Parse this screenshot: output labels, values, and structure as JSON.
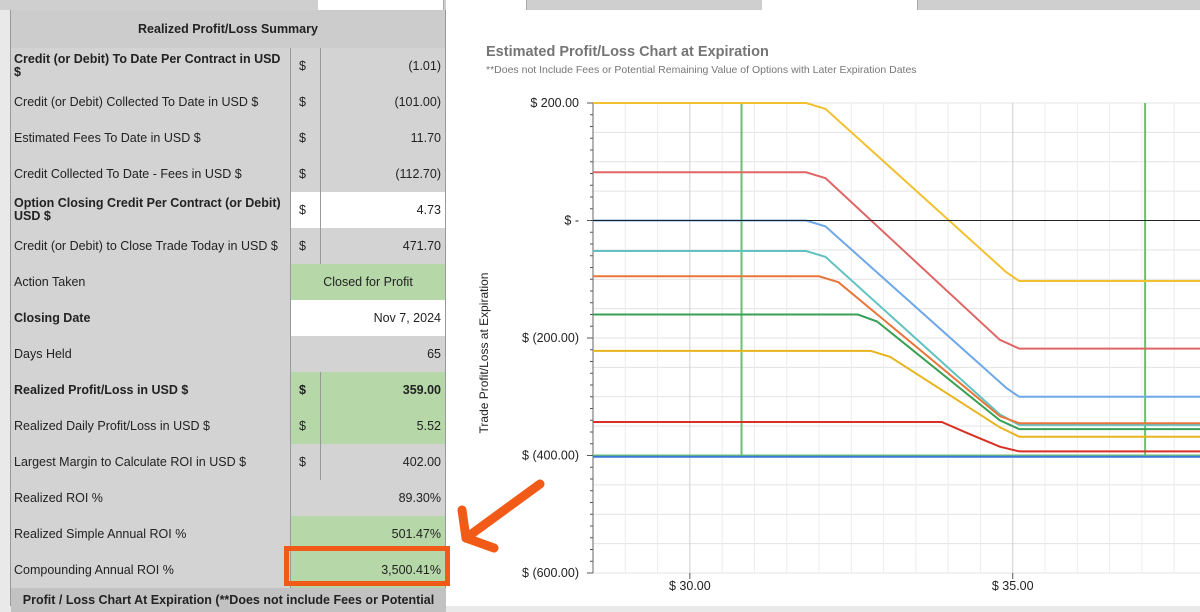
{
  "summary": {
    "title": "Realized Profit/Loss Summary",
    "rows": [
      {
        "label": "Credit (or Debit) To Date Per Contract in USD $",
        "currency": "$",
        "value": "(1.01)"
      },
      {
        "label": "Credit (or Debit) Collected To Date in USD $",
        "currency": "$",
        "value": "(101.00)"
      },
      {
        "label": "Estimated Fees To Date in USD $",
        "currency": "$",
        "value": "11.70"
      },
      {
        "label": "Credit Collected To Date - Fees in USD $",
        "currency": "$",
        "value": "(112.70)"
      },
      {
        "label": "Option Closing Credit Per Contract (or Debit) USD $",
        "currency": "$",
        "value": "4.73"
      },
      {
        "label": "Credit (or Debit) to Close Trade Today in USD $",
        "currency": "$",
        "value": "471.70"
      },
      {
        "label": "Action Taken",
        "value": "Closed for Profit"
      },
      {
        "label": "Closing Date",
        "value": "Nov 7, 2024"
      },
      {
        "label": "Days Held",
        "value": "65"
      },
      {
        "label": "Realized Profit/Loss in USD $",
        "currency": "$",
        "value": "359.00"
      },
      {
        "label": "Realized Daily Profit/Loss in USD $",
        "currency": "$",
        "value": "5.52"
      },
      {
        "label": "Largest Margin to Calculate ROI in USD $",
        "currency": "$",
        "value": "402.00"
      },
      {
        "label": "Realized ROI %",
        "value": "89.30%"
      },
      {
        "label": "Realized Simple Annual ROI %",
        "value": "501.47%"
      },
      {
        "label": "Compounding Annual ROI %",
        "value": "3,500.41%"
      }
    ],
    "footer": "Profit / Loss Chart At Expiration (**Does not include Fees or Potential"
  },
  "chart_data": {
    "type": "line",
    "title": "Estimated Profit/Loss Chart at Expiration",
    "subtitle": "**Does not Include Fees or Potential Remaining Value of Options with Later Expiration Dates",
    "ylabel": "Trade Profit/Loss at Expiration",
    "xlabel": "",
    "x_tick_labels": [
      "$ 30.00",
      "$ 35.00"
    ],
    "y_tick_labels": [
      "$ 200.00",
      "$ -",
      "$ (200.00)",
      "$ (400.00)",
      "$ (600.00)"
    ],
    "xlim": [
      28.5,
      37.9
    ],
    "ylim": [
      -600,
      200
    ],
    "grid": true,
    "reference_lines": [
      {
        "axis": "x",
        "value": 30.8,
        "color": "#6dbf73"
      },
      {
        "axis": "x",
        "value": 37.05,
        "color": "#6dbf73"
      },
      {
        "axis": "y",
        "value": -400,
        "color": "#6dbf73"
      }
    ],
    "series": [
      {
        "color": "#f2c132",
        "points": [
          [
            28.5,
            200
          ],
          [
            31.8,
            200
          ],
          [
            32.1,
            190
          ],
          [
            34.9,
            -88
          ],
          [
            35.1,
            -103
          ],
          [
            37.9,
            -103
          ]
        ]
      },
      {
        "color": "#e06666",
        "points": [
          [
            28.5,
            82
          ],
          [
            31.8,
            82
          ],
          [
            32.1,
            72
          ],
          [
            34.8,
            -203
          ],
          [
            35.1,
            -218
          ],
          [
            37.9,
            -218
          ]
        ]
      },
      {
        "color": "#6fa8e8",
        "points": [
          [
            28.5,
            0
          ],
          [
            31.8,
            0
          ],
          [
            32.1,
            -10
          ],
          [
            34.9,
            -285
          ],
          [
            35.1,
            -300
          ],
          [
            37.9,
            -300
          ]
        ]
      },
      {
        "color": "#62c2c2",
        "points": [
          [
            28.5,
            -52
          ],
          [
            31.8,
            -52
          ],
          [
            32.1,
            -62
          ],
          [
            34.8,
            -330
          ],
          [
            35.1,
            -348
          ],
          [
            37.9,
            -348
          ]
        ]
      },
      {
        "color": "#e8763a",
        "points": [
          [
            28.5,
            -95
          ],
          [
            32.0,
            -95
          ],
          [
            32.3,
            -105
          ],
          [
            34.8,
            -333
          ],
          [
            35.1,
            -345
          ],
          [
            37.9,
            -345
          ]
        ]
      },
      {
        "color": "#37a054",
        "points": [
          [
            28.5,
            -160
          ],
          [
            32.6,
            -160
          ],
          [
            32.9,
            -172
          ],
          [
            34.8,
            -340
          ],
          [
            35.1,
            -355
          ],
          [
            37.9,
            -355
          ]
        ]
      },
      {
        "color": "#e8b51f",
        "points": [
          [
            28.5,
            -222
          ],
          [
            32.8,
            -222
          ],
          [
            33.1,
            -232
          ],
          [
            34.8,
            -352
          ],
          [
            35.1,
            -368
          ],
          [
            37.9,
            -368
          ]
        ]
      },
      {
        "color": "#d93025",
        "points": [
          [
            28.5,
            -343
          ],
          [
            33.9,
            -343
          ],
          [
            34.3,
            -362
          ],
          [
            34.8,
            -385
          ],
          [
            35.1,
            -393
          ],
          [
            37.9,
            -393
          ]
        ]
      },
      {
        "color": "#3b78d8",
        "points": [
          [
            28.5,
            -402
          ],
          [
            37.9,
            -402
          ]
        ]
      },
      {
        "color": "#222222",
        "points": [
          [
            28.5,
            0
          ],
          [
            37.9,
            0
          ]
        ]
      }
    ]
  },
  "annotation": {
    "highlight_color": "#f25a18"
  }
}
